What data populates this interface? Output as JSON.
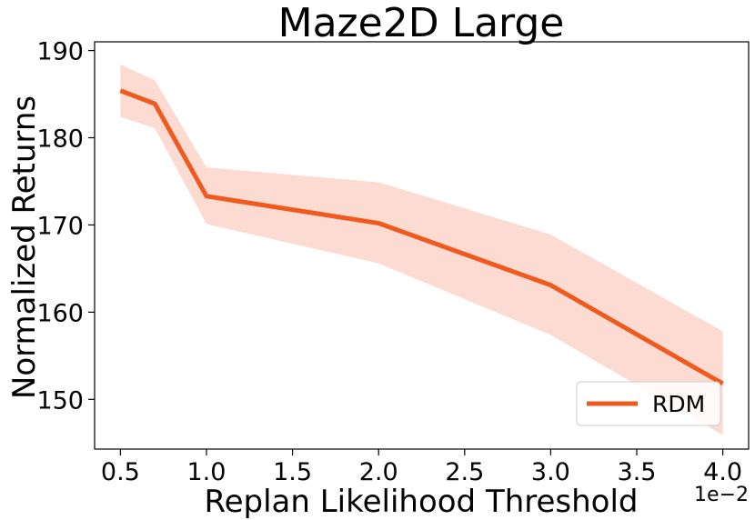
{
  "chart_data": {
    "type": "line",
    "title": "Maze2D Large",
    "xlabel": "Replan Likelihood Threshold",
    "ylabel": "Normalized Returns",
    "x_offset_label": "1e−2",
    "xlim": [
      0.35,
      4.15
    ],
    "ylim": [
      144.3,
      191.0
    ],
    "xticks": [
      0.5,
      1.0,
      1.5,
      2.0,
      2.5,
      3.0,
      3.5,
      4.0
    ],
    "xtick_labels": [
      "0.5",
      "1.0",
      "1.5",
      "2.0",
      "2.5",
      "3.0",
      "3.5",
      "4.0"
    ],
    "yticks": [
      150,
      160,
      170,
      180,
      190
    ],
    "ytick_labels": [
      "150",
      "160",
      "170",
      "180",
      "190"
    ],
    "grid": false,
    "legend": {
      "position": "lower-right",
      "entries": [
        "RDM"
      ]
    },
    "series": [
      {
        "name": "RDM",
        "color": "#f05a1f",
        "band_color": "#fcdcd2",
        "x": [
          0.5,
          0.7,
          1.0,
          2.0,
          3.0,
          4.0
        ],
        "values": [
          185.4,
          183.9,
          173.3,
          170.2,
          163.1,
          151.8
        ],
        "lower": [
          182.4,
          181.1,
          170.1,
          165.6,
          157.4,
          145.9
        ],
        "upper": [
          188.4,
          186.6,
          176.6,
          174.9,
          168.9,
          157.8
        ]
      }
    ]
  }
}
